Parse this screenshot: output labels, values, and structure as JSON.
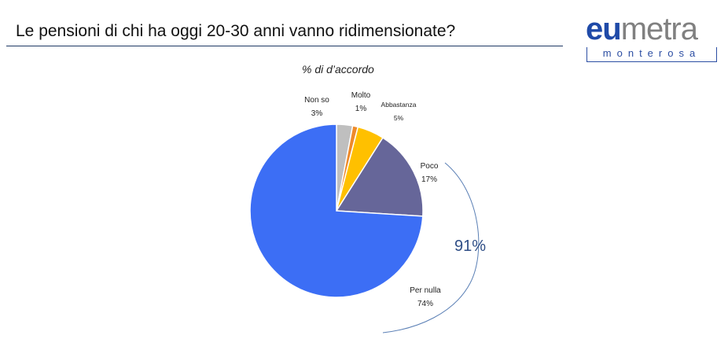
{
  "header": {
    "title": "Le pensioni di chi ha oggi 20-30 anni vanno ridimensionate?"
  },
  "logo": {
    "prefix": "eu",
    "suffix": "metra",
    "subline": "monterosa"
  },
  "chart_data": {
    "type": "pie",
    "title": "% di d’accordo",
    "slices": [
      {
        "label": "Non so",
        "value": 3,
        "value_label": "3%",
        "color": "#bfbfbf"
      },
      {
        "label": "Molto",
        "value": 1,
        "value_label": "1%",
        "color": "#ee8a2b"
      },
      {
        "label": "Abbastanza",
        "value": 5,
        "value_label": "5%",
        "color": "#ffc000"
      },
      {
        "label": "Poco",
        "value": 17,
        "value_label": "17%",
        "color": "#666699"
      },
      {
        "label": "Per nulla",
        "value": 74,
        "value_label": "74%",
        "color": "#3c6ef5"
      }
    ],
    "annotation": {
      "text": "91%",
      "spans": [
        "Poco",
        "Per nulla"
      ],
      "color": "#2f4e86"
    }
  }
}
